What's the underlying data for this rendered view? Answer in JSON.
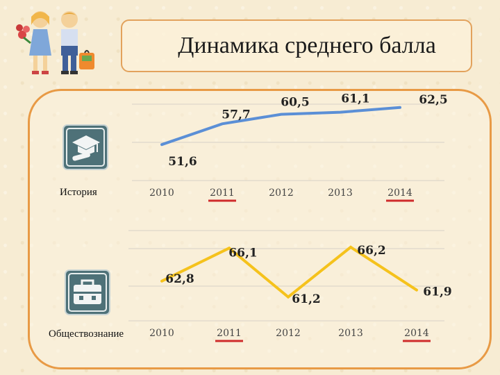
{
  "header": {
    "title": "Динамика среднего балла"
  },
  "icons": {
    "history": "graduation-cap-icon",
    "social": "briefcase-icon",
    "decoration": "schoolchildren-illustration"
  },
  "colors": {
    "history_line": "#5b8fd6",
    "social_line": "#f5c21c",
    "icon_bg": "#4e7178",
    "frame": "#e89a45",
    "underline": "#cf2b2b"
  },
  "subjects": [
    {
      "label": "История"
    },
    {
      "label": "Обществознание"
    }
  ],
  "chart_data": [
    {
      "type": "line",
      "categories": [
        "2010",
        "2011",
        "2012",
        "2013",
        "2014"
      ],
      "values": [
        51.6,
        57.7,
        60.5,
        61.1,
        62.5
      ],
      "data_labels": [
        "51,6",
        "57,7",
        "60,5",
        "61,1",
        "62,5"
      ],
      "underlined_categories": [
        "2011",
        "2014"
      ],
      "ylim": [
        40,
        70
      ],
      "grid": true,
      "legend": "none"
    },
    {
      "type": "line",
      "categories": [
        "2010",
        "2011",
        "2012",
        "2013",
        "2014"
      ],
      "values": [
        62.8,
        66.1,
        61.2,
        66.2,
        61.9
      ],
      "data_labels": [
        "62,8",
        "66,1",
        "61,2",
        "66,2",
        "61,9"
      ],
      "underlined_categories": [
        "2011",
        "2014"
      ],
      "ylim": [
        60,
        68
      ],
      "grid": true,
      "legend": "none"
    }
  ]
}
